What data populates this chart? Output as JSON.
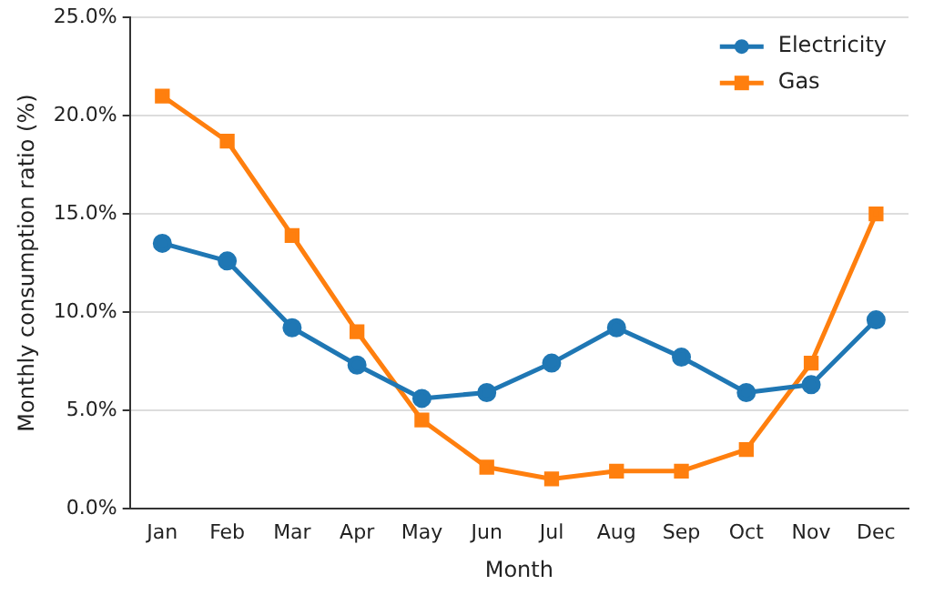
{
  "chart_data": {
    "type": "line",
    "xlabel": "Month",
    "ylabel": "Monthly consumption ratio (%)",
    "categories": [
      "Jan",
      "Feb",
      "Mar",
      "Apr",
      "May",
      "Jun",
      "Jul",
      "Aug",
      "Sep",
      "Oct",
      "Nov",
      "Dec"
    ],
    "series": [
      {
        "name": "Electricity",
        "color": "#1f77b4",
        "marker": "circle",
        "values": [
          13.5,
          12.6,
          9.2,
          7.3,
          5.6,
          5.9,
          7.4,
          9.2,
          7.7,
          5.9,
          6.3,
          9.6
        ]
      },
      {
        "name": "Gas",
        "color": "#ff7f0e",
        "marker": "square",
        "values": [
          21.0,
          18.7,
          13.9,
          9.0,
          4.5,
          2.1,
          1.5,
          1.9,
          1.9,
          3.0,
          7.4,
          15.0
        ]
      }
    ],
    "ylim": [
      0,
      25
    ],
    "yticks": [
      {
        "value": 0,
        "label": "0.0%"
      },
      {
        "value": 5,
        "label": "5.0%"
      },
      {
        "value": 10,
        "label": "10.0%"
      },
      {
        "value": 15,
        "label": "15.0%"
      },
      {
        "value": 20,
        "label": "20.0%"
      },
      {
        "value": 25,
        "label": "25.0%"
      }
    ],
    "grid": "y",
    "legend": "top right",
    "line_style": "solid"
  }
}
